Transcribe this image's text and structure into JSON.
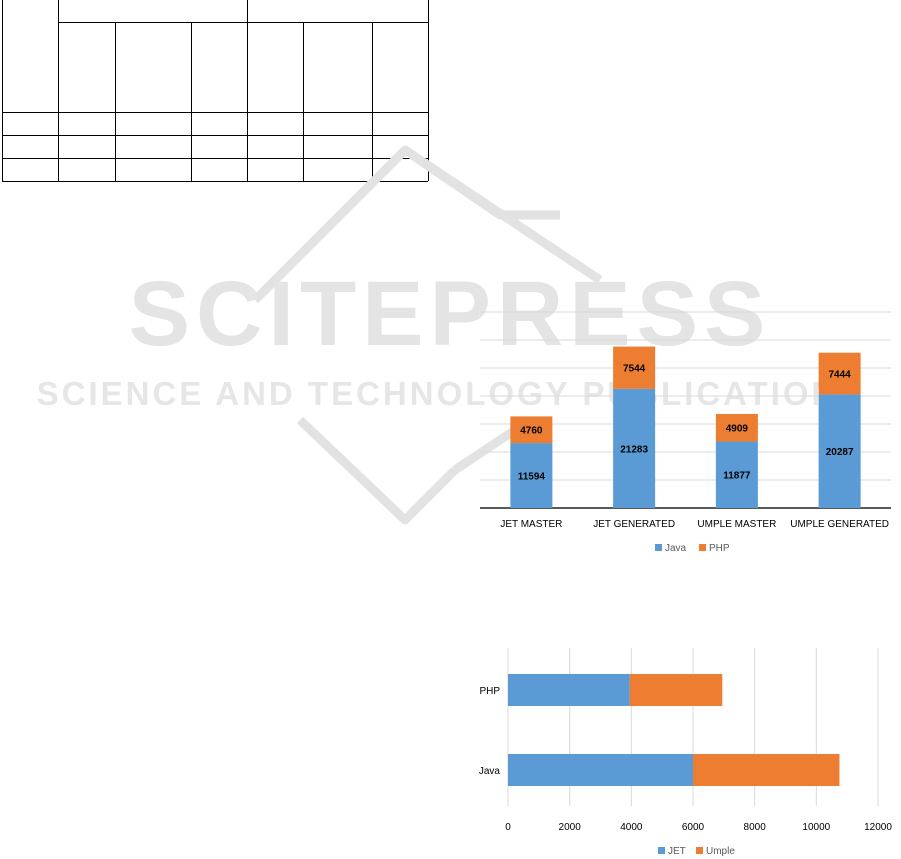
{
  "colors": {
    "java": "#5b9bd5",
    "php": "#ed7d31",
    "jet": "#5b9bd5",
    "umple": "#ed7d31",
    "grid": "#d9d9d9",
    "baseline": "#595959",
    "watermark": "#c8c8c8"
  },
  "watermark": {
    "title": "SCITEPRESS",
    "subtitle": "SCIENCE AND TECHNOLOGY PUBLICATIONS"
  },
  "chart_data": [
    {
      "type": "bar",
      "stacked": true,
      "orientation": "vertical",
      "categories": [
        "JET MASTER",
        "JET GENERATED",
        "UMPLE MASTER",
        "UMPLE GENERATED"
      ],
      "series": [
        {
          "name": "Java",
          "color_key": "java",
          "values": [
            11594,
            21283,
            11877,
            20287
          ]
        },
        {
          "name": "PHP",
          "color_key": "php",
          "values": [
            4760,
            7544,
            4909,
            7444
          ]
        }
      ],
      "ylim": [
        0,
        35000
      ],
      "grid": true,
      "legend": "bottom"
    },
    {
      "type": "bar",
      "stacked": true,
      "orientation": "horizontal",
      "categories": [
        "Java",
        "PHP"
      ],
      "series": [
        {
          "name": "JET",
          "color_key": "jet",
          "values": [
            6000,
            3950
          ]
        },
        {
          "name": "Umple",
          "color_key": "umple",
          "values": [
            4750,
            3000
          ]
        }
      ],
      "xticks": [
        "0",
        "2000",
        "4000",
        "6000",
        "8000",
        "10000",
        "12000"
      ],
      "xlim": [
        0,
        12000
      ],
      "grid": true,
      "legend": "bottom"
    }
  ]
}
